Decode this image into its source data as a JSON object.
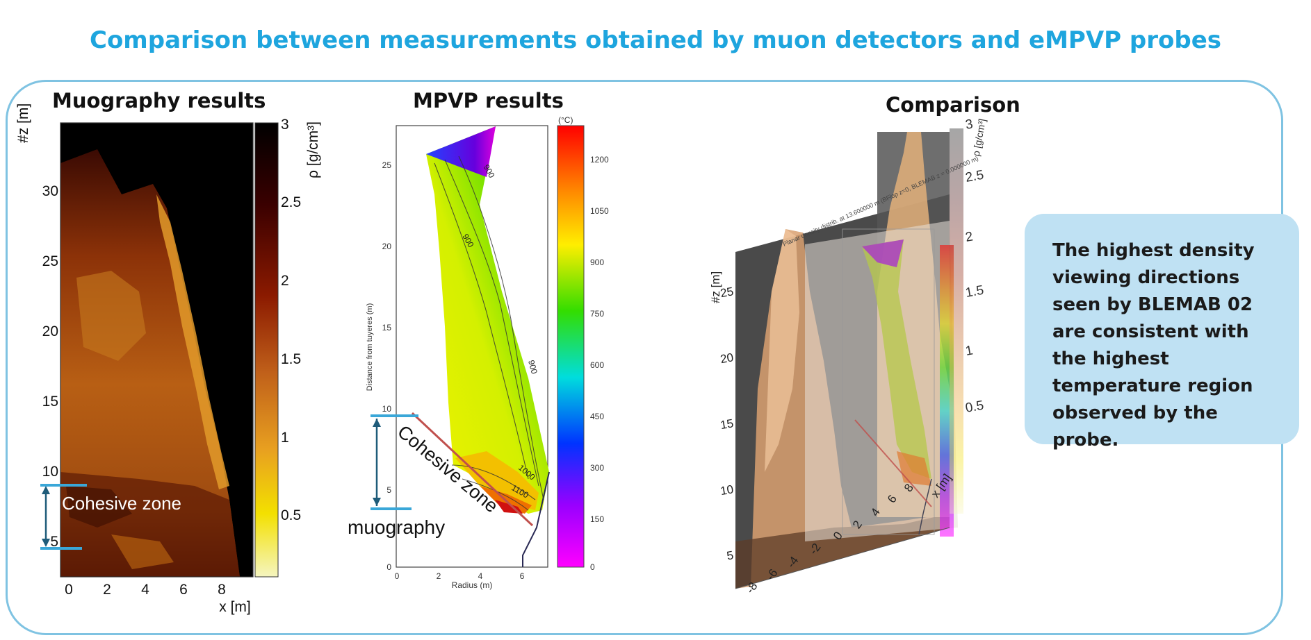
{
  "slide": {
    "title": "Comparison between measurements obtained by muon detectors and eMPVP probes"
  },
  "muography": {
    "title": "Muography results",
    "y_axis_label": "#z [m]",
    "x_axis_label": "x [m]",
    "y_ticks": [
      "30",
      "25",
      "20",
      "15",
      "10",
      "5"
    ],
    "x_ticks": [
      "0",
      "2",
      "4",
      "6",
      "8"
    ],
    "colorbar_label": "ρ [g/cm³]",
    "colorbar_ticks": [
      "3",
      "2.5",
      "2",
      "1.5",
      "1",
      "0.5"
    ],
    "annotation": "Cohesive zone"
  },
  "mpvp": {
    "title": "MPVP results",
    "y_axis_label": "Distance from tuyeres (m)",
    "x_axis_label": "Radius (m)",
    "y_ticks": [
      "25",
      "20",
      "15",
      "10",
      "5",
      "0"
    ],
    "x_ticks": [
      "0",
      "2",
      "4",
      "6"
    ],
    "colorbar_unit": "(°C)",
    "colorbar_ticks": [
      "1200",
      "1050",
      "900",
      "750",
      "600",
      "450",
      "300",
      "150",
      "0"
    ],
    "contour_labels": [
      "900",
      "900",
      "900",
      "1000",
      "1100"
    ],
    "annotation_zone": "Cohesive zone",
    "annotation_muography": "muography"
  },
  "comparison": {
    "title": "Comparison",
    "y_axis_label": "#z [m]",
    "y_ticks": [
      "25",
      "20",
      "15",
      "10",
      "5"
    ],
    "x_ticks": [
      "-8",
      "-6",
      "-4",
      "-2",
      "0",
      "2",
      "4",
      "6",
      "8"
    ],
    "x_axis_label": "x [m]",
    "colorbar_label": "ρ [g/cm³]",
    "colorbar_ticks": [
      "3",
      "2.5",
      "2",
      "1.5",
      "1",
      "0.5"
    ],
    "plane_caption": "Planar density distrib. at 13.600000 m (BFlop z=0, BLEMAB z = 0.000000 m)"
  },
  "note": {
    "text": "The highest density viewing directions seen by BLEMAB 02 are consistent with the highest temperature region observed by the probe."
  },
  "colors": {
    "title_blue": "#1ea5de",
    "frame_border": "#7fc3e2",
    "note_bg": "#bfe1f3",
    "arrow_blue": "#1f5c7a",
    "marker_blue": "#3aa7d8",
    "zone_line": "#c0504d"
  }
}
